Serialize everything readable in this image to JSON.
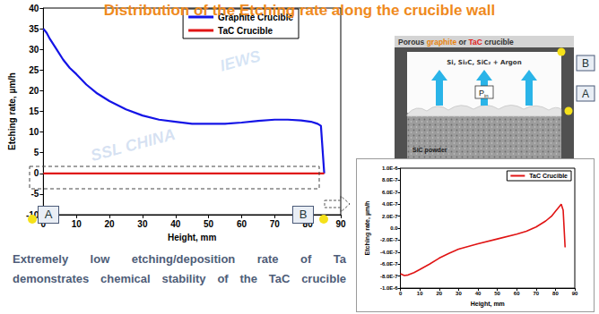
{
  "slide": {
    "title": "Distribution of the Etching rate along the crucible wall",
    "caption": [
      "Extremely low etching/deposition rate of Ta",
      "demonstrates chemical stability of the TaC crucible"
    ],
    "markers": [
      "A",
      "B"
    ],
    "diagram": {
      "crucible_label": [
        "Porous ",
        "graphite",
        " or ",
        "TaC",
        " crucible"
      ],
      "vapor": "Si, Si₂C, SiC₂ + Argon",
      "pressure": [
        "P",
        "in"
      ],
      "powder": "SiC powder",
      "points": [
        "A",
        "B"
      ]
    },
    "watermarks": [
      "SSL CHINA",
      "IEWS"
    ]
  },
  "chart_data": [
    {
      "type": "line",
      "xlabel": "Height, mm",
      "ylabel": "Etching rate, µm/h",
      "xlim": [
        0,
        90
      ],
      "xticks": [
        0,
        10,
        20,
        30,
        40,
        50,
        60,
        70,
        80,
        90
      ],
      "ylim": [
        -10,
        40
      ],
      "yticks": [
        -10,
        -5,
        0,
        5,
        10,
        15,
        20,
        25,
        30,
        35,
        40
      ],
      "grid": false,
      "legend": "upper right",
      "series": [
        {
          "name": "Graphite Crucible",
          "color": "#1414e6",
          "x": [
            0,
            1,
            2,
            4,
            6,
            8,
            10,
            13,
            16,
            20,
            25,
            30,
            35,
            40,
            45,
            50,
            55,
            60,
            65,
            70,
            74,
            78,
            81,
            83,
            84,
            85
          ],
          "values": [
            35,
            34,
            32.5,
            30,
            27.5,
            25.5,
            24,
            21.5,
            19.5,
            17.5,
            15.5,
            14,
            13,
            12.5,
            12,
            12,
            12,
            12.3,
            12.7,
            13,
            13,
            12.8,
            12.5,
            12,
            11.5,
            0
          ]
        },
        {
          "name": "TaC Crucible",
          "color": "#e01414",
          "x": [
            0,
            2,
            4,
            7,
            10,
            15,
            20,
            25,
            30,
            40,
            50,
            60,
            65,
            70,
            75,
            78,
            80,
            82,
            83,
            84,
            85
          ],
          "values": [
            -7.6e-07,
            -7.9e-07,
            -7.8e-07,
            -7.4e-07,
            -6.9e-07,
            -6e-07,
            -5e-07,
            -4.2e-07,
            -3.5e-07,
            -2.6e-07,
            -1.8e-07,
            -1e-07,
            -5e-08,
            2e-08,
            1.2e-07,
            2e-07,
            2.8e-07,
            3.6e-07,
            4e-07,
            3e-07,
            -3.2e-07
          ]
        }
      ]
    },
    {
      "type": "line",
      "xlabel": "Height, mm",
      "ylabel": "Etching rate, µm/h",
      "xlim": [
        0,
        90
      ],
      "xticks": [
        0,
        10,
        20,
        30,
        40,
        50,
        60,
        70,
        80,
        90
      ],
      "ylim": [
        -1e-06,
        1e-06
      ],
      "yticks": [
        {
          "value": -1e-06,
          "label": "-1.0E-6"
        },
        {
          "value": -8e-07,
          "label": "-8.0E-7"
        },
        {
          "value": -6e-07,
          "label": "-6.0E-7"
        },
        {
          "value": -4e-07,
          "label": "-4.0E-7"
        },
        {
          "value": -2e-07,
          "label": "-2.0E-7"
        },
        {
          "value": 0,
          "label": "0.0"
        },
        {
          "value": 2e-07,
          "label": "2.0E-7"
        },
        {
          "value": 4e-07,
          "label": "4.0E-7"
        },
        {
          "value": 6e-07,
          "label": "6.0E-7"
        },
        {
          "value": 8e-07,
          "label": "8.0E-7"
        },
        {
          "value": 1e-06,
          "label": "1.0E-6"
        }
      ],
      "grid": false,
      "legend": "upper right",
      "series": [
        {
          "name": "TaC Crucible",
          "color": "#e01414",
          "x": [
            0,
            2,
            4,
            7,
            10,
            15,
            20,
            25,
            30,
            40,
            50,
            60,
            65,
            70,
            75,
            78,
            80,
            82,
            83,
            84,
            85
          ],
          "values": [
            -7.6e-07,
            -7.9e-07,
            -7.8e-07,
            -7.4e-07,
            -6.9e-07,
            -6e-07,
            -5e-07,
            -4.2e-07,
            -3.5e-07,
            -2.6e-07,
            -1.8e-07,
            -1e-07,
            -5e-08,
            2e-08,
            1.2e-07,
            2e-07,
            2.8e-07,
            3.6e-07,
            4e-07,
            3e-07,
            -3.2e-07
          ]
        }
      ]
    }
  ]
}
